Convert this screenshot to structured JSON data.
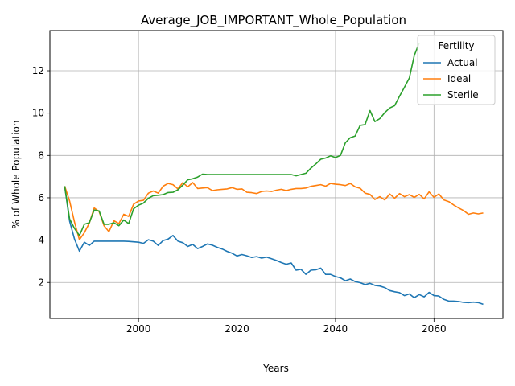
{
  "chart_data": {
    "type": "line",
    "title": "Average_JOB_IMPORTANT_Whole_Population",
    "xlabel": "Years",
    "ylabel": "% of Whole Population",
    "xlim": [
      1982,
      2074
    ],
    "ylim": [
      0.3,
      13.9
    ],
    "xticks": [
      2000,
      2020,
      2040,
      2060
    ],
    "yticks": [
      2,
      4,
      6,
      8,
      10,
      12
    ],
    "grid": true,
    "legend": {
      "title": "Fertility",
      "position": "top-right"
    },
    "series": [
      {
        "name": "Actual",
        "color": "#1f77b4",
        "x": [
          1985,
          1986,
          1987,
          1988,
          1989,
          1990,
          1991,
          1992,
          1993,
          1994,
          1995,
          1996,
          1997,
          1998,
          1999,
          2000,
          2001,
          2002,
          2003,
          2004,
          2005,
          2006,
          2007,
          2008,
          2009,
          2010,
          2011,
          2012,
          2013,
          2014,
          2015,
          2016,
          2017,
          2018,
          2019,
          2020,
          2021,
          2022,
          2023,
          2024,
          2025,
          2026,
          2027,
          2028,
          2029,
          2030,
          2031,
          2032,
          2033,
          2034,
          2035,
          2036,
          2037,
          2038,
          2039,
          2040,
          2041,
          2042,
          2043,
          2044,
          2045,
          2046,
          2047,
          2048,
          2049,
          2050,
          2051,
          2052,
          2053,
          2054,
          2055,
          2056,
          2057,
          2058,
          2059,
          2060,
          2061,
          2062,
          2063,
          2064,
          2065,
          2066,
          2067,
          2068,
          2069,
          2070
        ],
        "y": [
          6.55,
          4.9,
          4.05,
          3.48,
          3.9,
          3.75,
          3.95,
          3.95,
          3.95,
          3.95,
          3.95,
          3.95,
          3.95,
          3.94,
          3.92,
          3.9,
          3.85,
          4.02,
          3.95,
          3.75,
          3.98,
          4.05,
          4.22,
          3.95,
          3.88,
          3.7,
          3.8,
          3.6,
          3.7,
          3.82,
          3.76,
          3.66,
          3.58,
          3.47,
          3.38,
          3.25,
          3.32,
          3.26,
          3.18,
          3.22,
          3.15,
          3.2,
          3.12,
          3.04,
          2.94,
          2.86,
          2.92,
          2.58,
          2.62,
          2.38,
          2.58,
          2.6,
          2.68,
          2.38,
          2.38,
          2.28,
          2.22,
          2.08,
          2.16,
          2.04,
          1.99,
          1.9,
          1.96,
          1.86,
          1.83,
          1.76,
          1.62,
          1.56,
          1.52,
          1.38,
          1.46,
          1.28,
          1.43,
          1.32,
          1.53,
          1.38,
          1.36,
          1.2,
          1.12,
          1.12,
          1.1,
          1.06,
          1.05,
          1.07,
          1.05,
          0.97
        ]
      },
      {
        "name": "Ideal",
        "color": "#ff7f0e",
        "x": [
          1985,
          1986,
          1987,
          1988,
          1989,
          1990,
          1991,
          1992,
          1993,
          1994,
          1995,
          1996,
          1997,
          1998,
          1999,
          2000,
          2001,
          2002,
          2003,
          2004,
          2005,
          2006,
          2007,
          2008,
          2009,
          2010,
          2011,
          2012,
          2013,
          2014,
          2015,
          2016,
          2017,
          2018,
          2019,
          2020,
          2021,
          2022,
          2023,
          2024,
          2025,
          2026,
          2027,
          2028,
          2029,
          2030,
          2031,
          2032,
          2033,
          2034,
          2035,
          2036,
          2037,
          2038,
          2039,
          2040,
          2041,
          2042,
          2043,
          2044,
          2045,
          2046,
          2047,
          2048,
          2049,
          2050,
          2051,
          2052,
          2053,
          2054,
          2055,
          2056,
          2057,
          2058,
          2059,
          2060,
          2061,
          2062,
          2063,
          2064,
          2065,
          2066,
          2067,
          2068,
          2069,
          2070
        ],
        "y": [
          6.55,
          5.85,
          4.85,
          4.02,
          4.35,
          4.8,
          5.52,
          5.35,
          4.68,
          4.4,
          4.92,
          4.78,
          5.22,
          5.12,
          5.7,
          5.85,
          5.88,
          6.22,
          6.32,
          6.22,
          6.55,
          6.68,
          6.62,
          6.42,
          6.72,
          6.52,
          6.72,
          6.44,
          6.46,
          6.48,
          6.34,
          6.38,
          6.4,
          6.42,
          6.48,
          6.4,
          6.42,
          6.26,
          6.24,
          6.2,
          6.3,
          6.32,
          6.3,
          6.36,
          6.4,
          6.34,
          6.4,
          6.44,
          6.44,
          6.46,
          6.54,
          6.58,
          6.62,
          6.55,
          6.68,
          6.64,
          6.62,
          6.58,
          6.68,
          6.52,
          6.45,
          6.22,
          6.16,
          5.92,
          6.05,
          5.9,
          6.18,
          5.98,
          6.2,
          6.05,
          6.15,
          6.02,
          6.16,
          5.95,
          6.28,
          6.02,
          6.18,
          5.9,
          5.82,
          5.66,
          5.52,
          5.4,
          5.22,
          5.28,
          5.24,
          5.28
        ]
      },
      {
        "name": "Sterile",
        "color": "#2ca02c",
        "x": [
          1985,
          1986,
          1987,
          1988,
          1989,
          1990,
          1991,
          1992,
          1993,
          1994,
          1995,
          1996,
          1997,
          1998,
          1999,
          2000,
          2001,
          2002,
          2003,
          2004,
          2005,
          2006,
          2007,
          2008,
          2009,
          2010,
          2011,
          2012,
          2013,
          2014,
          2015,
          2016,
          2017,
          2018,
          2019,
          2020,
          2021,
          2022,
          2023,
          2024,
          2025,
          2026,
          2027,
          2028,
          2029,
          2030,
          2031,
          2032,
          2033,
          2034,
          2035,
          2036,
          2037,
          2038,
          2039,
          2040,
          2041,
          2042,
          2043,
          2044,
          2045,
          2046,
          2047,
          2048,
          2049,
          2050,
          2051,
          2052,
          2053,
          2054,
          2055,
          2056,
          2057
        ],
        "y": [
          6.55,
          5.0,
          4.55,
          4.22,
          4.75,
          4.82,
          5.42,
          5.38,
          4.75,
          4.75,
          4.82,
          4.68,
          4.95,
          4.78,
          5.48,
          5.65,
          5.75,
          5.98,
          6.1,
          6.12,
          6.15,
          6.25,
          6.26,
          6.38,
          6.6,
          6.85,
          6.9,
          6.98,
          7.12,
          7.1,
          7.1,
          7.1,
          7.1,
          7.1,
          7.1,
          7.1,
          7.1,
          7.1,
          7.1,
          7.1,
          7.1,
          7.1,
          7.1,
          7.1,
          7.1,
          7.1,
          7.1,
          7.04,
          7.1,
          7.16,
          7.4,
          7.6,
          7.82,
          7.88,
          7.98,
          7.9,
          8.0,
          8.6,
          8.84,
          8.92,
          9.42,
          9.46,
          10.12,
          9.6,
          9.74,
          10.02,
          10.24,
          10.35,
          10.8,
          11.22,
          11.66,
          12.72,
          13.32
        ]
      }
    ]
  }
}
